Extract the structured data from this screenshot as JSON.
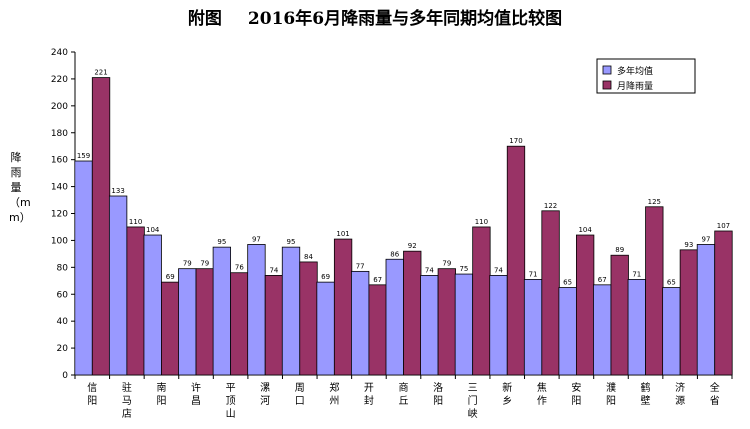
{
  "chart_data": {
    "type": "bar",
    "title_prefix": "附图",
    "title": "2016年6月降雨量与多年同期均值比较图",
    "ylabel": "降雨量（mm）",
    "xlabel": "",
    "ylim": [
      0,
      240
    ],
    "yticks": [
      0,
      20,
      40,
      60,
      80,
      100,
      120,
      140,
      160,
      180,
      200,
      220,
      240
    ],
    "grid": false,
    "legend_position": "top-right",
    "categories": [
      "信阳",
      "驻马店",
      "南阳",
      "许昌",
      "平顶山",
      "漯河",
      "周口",
      "郑州",
      "开封",
      "商丘",
      "洛阳",
      "三门峡",
      "新乡",
      "焦作",
      "安阳",
      "濮阳",
      "鹤壁",
      "济源",
      "全省"
    ],
    "series": [
      {
        "name": "多年均值",
        "color": "#9999ff",
        "values": [
          159,
          133,
          104,
          79,
          95,
          97,
          95,
          69,
          77,
          86,
          74,
          75,
          74,
          71,
          65,
          67,
          71,
          65,
          97
        ]
      },
      {
        "name": "月降雨量",
        "color": "#993366",
        "values": [
          221,
          110,
          69,
          79,
          76,
          74,
          84,
          101,
          67,
          92,
          79,
          110,
          170,
          122,
          104,
          89,
          125,
          93,
          107
        ]
      }
    ]
  }
}
